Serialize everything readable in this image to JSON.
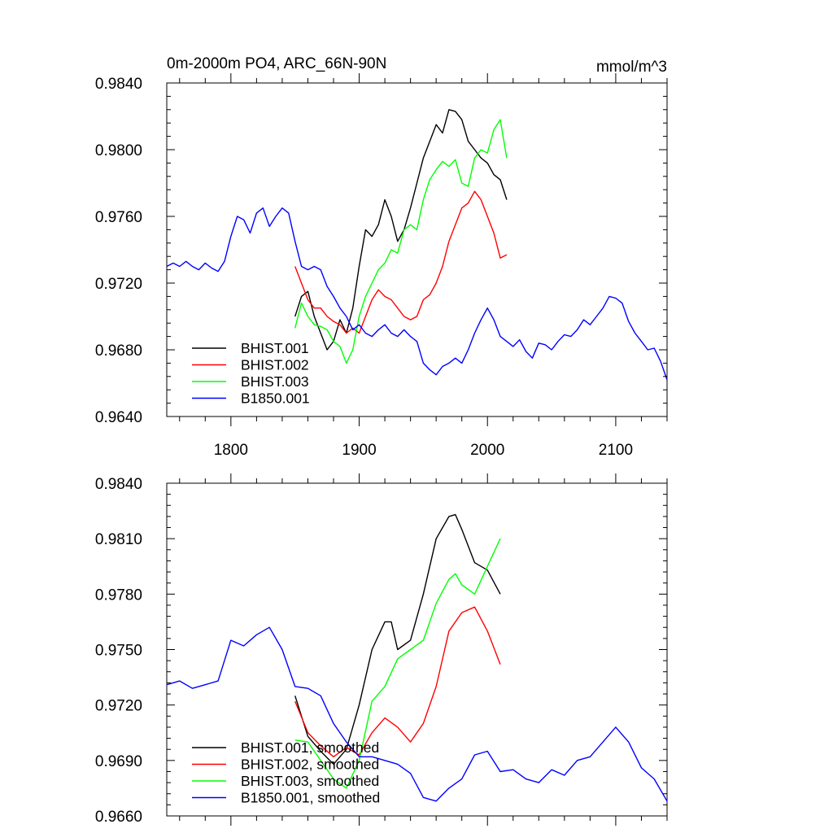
{
  "chart_data": [
    {
      "type": "line",
      "title": "0m-2000m PO4, ARC_66N-90N",
      "units": "mmol/m^3",
      "xlabel": "",
      "ylabel": "",
      "xlim": [
        1750,
        2140
      ],
      "ylim": [
        0.964,
        0.984
      ],
      "xticks": [
        1800,
        1900,
        2000,
        2100
      ],
      "xtick_labels": [
        "1800",
        "1900",
        "2000",
        "2100"
      ],
      "yticks": [
        0.964,
        0.968,
        0.972,
        0.976,
        0.98,
        0.984
      ],
      "ytick_labels": [
        "0.9640",
        "0.9680",
        "0.9720",
        "0.9760",
        "0.9800",
        "0.9840"
      ],
      "legend_position": "bottom-left",
      "series": [
        {
          "name": "BHIST.001",
          "color": "#000000",
          "x": [
            1850,
            1855,
            1860,
            1865,
            1870,
            1875,
            1880,
            1885,
            1890,
            1895,
            1900,
            1905,
            1910,
            1915,
            1920,
            1925,
            1930,
            1935,
            1940,
            1945,
            1950,
            1955,
            1960,
            1965,
            1970,
            1975,
            1980,
            1985,
            1990,
            1995,
            2000,
            2005,
            2010,
            2015
          ],
          "y": [
            0.97,
            0.9712,
            0.9715,
            0.97,
            0.969,
            0.968,
            0.9685,
            0.9698,
            0.969,
            0.9705,
            0.973,
            0.9752,
            0.9748,
            0.9755,
            0.977,
            0.976,
            0.9745,
            0.9752,
            0.9765,
            0.978,
            0.9795,
            0.9805,
            0.9815,
            0.981,
            0.9824,
            0.9823,
            0.9818,
            0.9805,
            0.98,
            0.9795,
            0.9792,
            0.9785,
            0.9782,
            0.977
          ]
        },
        {
          "name": "BHIST.002",
          "color": "#ff0000",
          "x": [
            1850,
            1855,
            1860,
            1865,
            1870,
            1875,
            1880,
            1885,
            1890,
            1895,
            1900,
            1905,
            1910,
            1915,
            1920,
            1925,
            1930,
            1935,
            1940,
            1945,
            1950,
            1955,
            1960,
            1965,
            1970,
            1975,
            1980,
            1985,
            1990,
            1995,
            2000,
            2005,
            2010,
            2015
          ],
          "y": [
            0.973,
            0.972,
            0.971,
            0.9705,
            0.9705,
            0.97,
            0.9697,
            0.9695,
            0.969,
            0.9693,
            0.969,
            0.97,
            0.971,
            0.9716,
            0.9712,
            0.971,
            0.9705,
            0.97,
            0.9698,
            0.97,
            0.971,
            0.9713,
            0.972,
            0.973,
            0.9745,
            0.9755,
            0.9765,
            0.9768,
            0.9775,
            0.977,
            0.976,
            0.975,
            0.9735,
            0.9737
          ]
        },
        {
          "name": "BHIST.003",
          "color": "#00ff00",
          "x": [
            1850,
            1855,
            1860,
            1865,
            1870,
            1875,
            1880,
            1885,
            1890,
            1895,
            1900,
            1905,
            1910,
            1915,
            1920,
            1925,
            1930,
            1935,
            1940,
            1945,
            1950,
            1955,
            1960,
            1965,
            1970,
            1975,
            1980,
            1985,
            1990,
            1995,
            2000,
            2005,
            2010,
            2015
          ],
          "y": [
            0.9693,
            0.9708,
            0.97,
            0.9695,
            0.9694,
            0.9692,
            0.9685,
            0.9682,
            0.9672,
            0.968,
            0.97,
            0.9712,
            0.972,
            0.9728,
            0.9732,
            0.974,
            0.9738,
            0.9752,
            0.9755,
            0.9752,
            0.977,
            0.9782,
            0.9788,
            0.9793,
            0.979,
            0.9794,
            0.978,
            0.9778,
            0.9795,
            0.98,
            0.9798,
            0.9812,
            0.9818,
            0.9795
          ]
        },
        {
          "name": "B1850.001",
          "color": "#0000ff",
          "x": [
            1750,
            1755,
            1760,
            1765,
            1770,
            1775,
            1780,
            1785,
            1790,
            1795,
            1800,
            1805,
            1810,
            1815,
            1820,
            1825,
            1830,
            1835,
            1840,
            1845,
            1850,
            1855,
            1860,
            1865,
            1870,
            1875,
            1880,
            1885,
            1890,
            1895,
            1900,
            1905,
            1910,
            1915,
            1920,
            1925,
            1930,
            1935,
            1940,
            1945,
            1950,
            1955,
            1960,
            1965,
            1970,
            1975,
            1980,
            1985,
            1990,
            1995,
            2000,
            2005,
            2010,
            2015,
            2020,
            2025,
            2030,
            2035,
            2040,
            2045,
            2050,
            2055,
            2060,
            2065,
            2070,
            2075,
            2080,
            2085,
            2090,
            2095,
            2100,
            2105,
            2110,
            2115,
            2120,
            2125,
            2130,
            2135,
            2140
          ],
          "y": [
            0.973,
            0.9732,
            0.973,
            0.9733,
            0.973,
            0.9728,
            0.9732,
            0.9729,
            0.9727,
            0.9733,
            0.9748,
            0.976,
            0.9758,
            0.975,
            0.9762,
            0.9765,
            0.9754,
            0.976,
            0.9765,
            0.9762,
            0.9745,
            0.973,
            0.9728,
            0.973,
            0.9728,
            0.9718,
            0.9712,
            0.9705,
            0.97,
            0.9692,
            0.9695,
            0.969,
            0.9688,
            0.9692,
            0.9695,
            0.969,
            0.9688,
            0.9692,
            0.9688,
            0.9685,
            0.9672,
            0.9668,
            0.9665,
            0.967,
            0.9672,
            0.9675,
            0.9672,
            0.968,
            0.969,
            0.9698,
            0.9705,
            0.9698,
            0.9688,
            0.9685,
            0.9682,
            0.9686,
            0.9679,
            0.9675,
            0.9684,
            0.9683,
            0.968,
            0.9685,
            0.9689,
            0.9688,
            0.9692,
            0.9698,
            0.9695,
            0.97,
            0.9705,
            0.9712,
            0.9711,
            0.9708,
            0.9697,
            0.969,
            0.9685,
            0.968,
            0.9681,
            0.9673,
            0.9662
          ]
        }
      ]
    },
    {
      "type": "line",
      "title": "",
      "xlabel": "",
      "ylabel": "",
      "xlim": [
        1750,
        2140
      ],
      "ylim": [
        0.966,
        0.984
      ],
      "xticks": [
        1800,
        1900,
        2000,
        2100
      ],
      "yticks": [
        0.966,
        0.969,
        0.972,
        0.975,
        0.978,
        0.981,
        0.984
      ],
      "ytick_labels": [
        "0.9660",
        "0.9690",
        "0.9720",
        "0.9750",
        "0.9780",
        "0.9810",
        "0.9840"
      ],
      "legend_position": "bottom-left",
      "series": [
        {
          "name": "BHIST.001, smoothed",
          "color": "#000000",
          "x": [
            1850,
            1860,
            1870,
            1880,
            1890,
            1900,
            1910,
            1920,
            1925,
            1930,
            1940,
            1950,
            1960,
            1970,
            1975,
            1980,
            1990,
            2000,
            2010
          ],
          "y": [
            0.9725,
            0.9703,
            0.9695,
            0.9688,
            0.9696,
            0.972,
            0.975,
            0.9765,
            0.9765,
            0.975,
            0.9755,
            0.978,
            0.981,
            0.9822,
            0.9823,
            0.9815,
            0.9797,
            0.9793,
            0.978
          ]
        },
        {
          "name": "BHIST.002, smoothed",
          "color": "#ff0000",
          "x": [
            1850,
            1860,
            1870,
            1880,
            1890,
            1900,
            1910,
            1920,
            1930,
            1940,
            1950,
            1960,
            1970,
            1980,
            1990,
            2000,
            2010
          ],
          "y": [
            0.9722,
            0.9705,
            0.9698,
            0.9692,
            0.9697,
            0.9693,
            0.9705,
            0.9713,
            0.9708,
            0.97,
            0.971,
            0.973,
            0.976,
            0.977,
            0.9773,
            0.976,
            0.9742
          ]
        },
        {
          "name": "BHIST.003, smoothed",
          "color": "#00ff00",
          "x": [
            1850,
            1860,
            1870,
            1880,
            1890,
            1900,
            1910,
            1920,
            1930,
            1940,
            1950,
            1960,
            1970,
            1975,
            1980,
            1990,
            2000,
            2010
          ],
          "y": [
            0.9701,
            0.97,
            0.969,
            0.968,
            0.9675,
            0.969,
            0.9722,
            0.973,
            0.9745,
            0.975,
            0.9755,
            0.9775,
            0.9788,
            0.9791,
            0.9785,
            0.978,
            0.9795,
            0.981
          ]
        },
        {
          "name": "B1850.001, smoothed",
          "color": "#0000ff",
          "x": [
            1750,
            1760,
            1770,
            1780,
            1790,
            1800,
            1810,
            1820,
            1830,
            1840,
            1850,
            1860,
            1870,
            1880,
            1890,
            1900,
            1910,
            1920,
            1930,
            1940,
            1950,
            1960,
            1970,
            1980,
            1990,
            2000,
            2010,
            2020,
            2030,
            2040,
            2050,
            2060,
            2070,
            2080,
            2090,
            2100,
            2110,
            2120,
            2130,
            2140
          ],
          "y": [
            0.9731,
            0.9733,
            0.9729,
            0.9731,
            0.9733,
            0.9755,
            0.9752,
            0.9758,
            0.9762,
            0.975,
            0.973,
            0.9729,
            0.9725,
            0.971,
            0.97,
            0.9692,
            0.9692,
            0.969,
            0.9688,
            0.9683,
            0.967,
            0.9668,
            0.9675,
            0.968,
            0.9693,
            0.9695,
            0.9684,
            0.9685,
            0.968,
            0.9678,
            0.9685,
            0.9682,
            0.969,
            0.9692,
            0.97,
            0.9708,
            0.97,
            0.9686,
            0.968,
            0.9668
          ]
        }
      ]
    }
  ]
}
